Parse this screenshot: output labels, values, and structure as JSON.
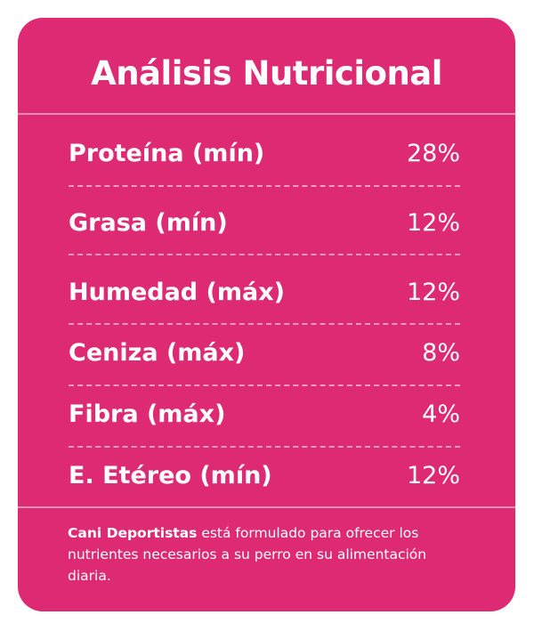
{
  "title": "Análisis Nutricional",
  "rows": [
    {
      "label": "Proteína (mín)",
      "value": "28%"
    },
    {
      "label": "Grasa (mín)",
      "value": "12%"
    },
    {
      "label": "Humedad (máx)",
      "value": "12%"
    },
    {
      "label": "Ceniza (máx)",
      "value": "8%"
    },
    {
      "label": "Fibra (máx)",
      "value": "4%"
    },
    {
      "label": "E. Etéreo (mín)",
      "value": "12%"
    }
  ],
  "note": {
    "brand": "Cani Deportistas",
    "text": " está formulado para ofrecer los nutrientes necesarios a su perro en su alimentación diaria."
  },
  "colors": {
    "background": "#dd2a72",
    "text": "#ffffff"
  }
}
